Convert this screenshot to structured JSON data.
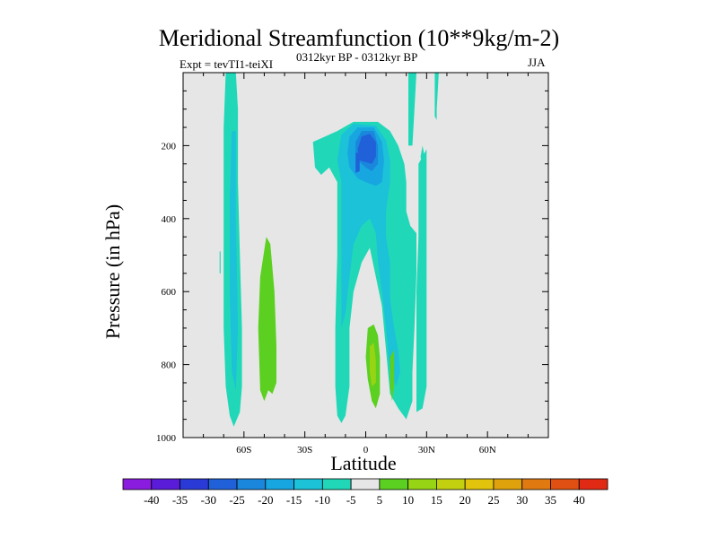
{
  "chart_data": {
    "type": "heatmap",
    "title": "Meridional Streamfunction (10**9kg/m-2)",
    "subtitle_left": "Expt = tevTI1-teiXI",
    "subtitle_center": "0312kyr BP - 0312kyr BP",
    "subtitle_right": "JJA",
    "xlabel": "Latitude",
    "ylabel": "Pressure (in hPa)",
    "x_range": [
      -90,
      90
    ],
    "y_range": [
      1000,
      0
    ],
    "y_ticks": [
      {
        "value": 200,
        "label": "200"
      },
      {
        "value": 400,
        "label": "400"
      },
      {
        "value": 600,
        "label": "600"
      },
      {
        "value": 800,
        "label": "800"
      },
      {
        "value": 1000,
        "label": "1000"
      }
    ],
    "x_ticks": [
      {
        "value": -60,
        "label": "60S"
      },
      {
        "value": -30,
        "label": "30S"
      },
      {
        "value": 0,
        "label": "0"
      },
      {
        "value": 30,
        "label": "30N"
      },
      {
        "value": 60,
        "label": "60N"
      }
    ],
    "colorbar": {
      "labels": [
        "-40",
        "-35",
        "-30",
        "-25",
        "-20",
        "-15",
        "-10",
        "-5",
        "5",
        "10",
        "15",
        "20",
        "25",
        "30",
        "35",
        "40"
      ],
      "colors": [
        "#8a1ce0",
        "#5a1cd8",
        "#2a3ad6",
        "#2060d8",
        "#1a86dc",
        "#18a6e0",
        "#1cc2d8",
        "#20d8b8",
        "#e6e6e6",
        "#5cd020",
        "#96d414",
        "#c2d010",
        "#e2c40c",
        "#e0a20c",
        "#e07a10",
        "#e05012",
        "#e02a14"
      ],
      "bins": [
        "<-40",
        "-40 to -35",
        "-35 to -30",
        "-30 to -25",
        "-25 to -20",
        "-20 to -15",
        "-15 to -10",
        "-10 to -5",
        "-5 to 5",
        "5 to 10",
        "10 to 15",
        "15 to 20",
        "20 to 25",
        "25 to 30",
        "30 to 35",
        "35 to 40",
        ">40"
      ]
    },
    "background_color": "#e6e6e6",
    "contour_regions": [
      {
        "name": "sh-polar-cell",
        "level": -5,
        "color": "#20d8b8",
        "outline": [
          [
            -69,
            0
          ],
          [
            -64,
            0
          ],
          [
            -63,
            100
          ],
          [
            -63,
            300
          ],
          [
            -62,
            500
          ],
          [
            -61,
            700
          ],
          [
            -61,
            860
          ],
          [
            -62,
            930
          ],
          [
            -65,
            970
          ],
          [
            -67,
            940
          ],
          [
            -69,
            860
          ],
          [
            -70,
            700
          ],
          [
            -70,
            500
          ],
          [
            -70,
            300
          ],
          [
            -70,
            150
          ]
        ]
      },
      {
        "name": "sh-polar-core",
        "level": -10,
        "color": "#1cc2d8",
        "outline": [
          [
            -66,
            160
          ],
          [
            -64,
            160
          ],
          [
            -64,
            400
          ],
          [
            -63,
            700
          ],
          [
            -64,
            870
          ],
          [
            -66,
            820
          ],
          [
            -67,
            600
          ],
          [
            -67,
            350
          ]
        ]
      },
      {
        "name": "sh-midlat-positive",
        "level": 5,
        "color": "#5cd020",
        "outline": [
          [
            -49,
            450
          ],
          [
            -47,
            470
          ],
          [
            -45,
            600
          ],
          [
            -44,
            750
          ],
          [
            -44,
            850
          ],
          [
            -46,
            880
          ],
          [
            -48,
            870
          ],
          [
            -50,
            900
          ],
          [
            -52,
            870
          ],
          [
            -53,
            700
          ],
          [
            -52,
            560
          ]
        ]
      },
      {
        "name": "small-cell",
        "level": -5,
        "color": "#20d8b8",
        "outline": [
          [
            -72,
            490
          ],
          [
            -71.5,
            490
          ],
          [
            -71.5,
            550
          ],
          [
            -72,
            550
          ]
        ]
      },
      {
        "name": "hadley-cell-outer",
        "level": -5,
        "color": "#20d8b8",
        "outline": [
          [
            -26,
            190
          ],
          [
            -22,
            180
          ],
          [
            -14,
            160
          ],
          [
            -6,
            135
          ],
          [
            6,
            135
          ],
          [
            12,
            160
          ],
          [
            16,
            200
          ],
          [
            19,
            250
          ],
          [
            20,
            300
          ],
          [
            20,
            380
          ],
          [
            22,
            420
          ],
          [
            25,
            440
          ],
          [
            25,
            550
          ],
          [
            24,
            700
          ],
          [
            23,
            820
          ],
          [
            23,
            900
          ],
          [
            20,
            950
          ],
          [
            16,
            920
          ],
          [
            12,
            880
          ],
          [
            10,
            760
          ],
          [
            8,
            640
          ],
          [
            5,
            560
          ],
          [
            2,
            480
          ],
          [
            -2,
            520
          ],
          [
            -6,
            600
          ],
          [
            -8,
            700
          ],
          [
            -8,
            860
          ],
          [
            -10,
            940
          ],
          [
            -12,
            960
          ],
          [
            -14,
            940
          ],
          [
            -15,
            860
          ],
          [
            -15,
            700
          ],
          [
            -14,
            500
          ],
          [
            -14,
            300
          ],
          [
            -18,
            260
          ],
          [
            -22,
            280
          ],
          [
            -25,
            260
          ]
        ]
      },
      {
        "name": "hadley-cell-10",
        "level": -10,
        "color": "#1cc2d8",
        "outline": [
          [
            -12,
            170
          ],
          [
            -6,
            140
          ],
          [
            5,
            145
          ],
          [
            10,
            185
          ],
          [
            12,
            240
          ],
          [
            12,
            300
          ],
          [
            10,
            380
          ],
          [
            10,
            450
          ],
          [
            12,
            520
          ],
          [
            12,
            620
          ],
          [
            14,
            700
          ],
          [
            16,
            760
          ],
          [
            17,
            820
          ],
          [
            15,
            860
          ],
          [
            12,
            820
          ],
          [
            10,
            700
          ],
          [
            8,
            600
          ],
          [
            6,
            520
          ],
          [
            5,
            440
          ],
          [
            2,
            400
          ],
          [
            -2,
            420
          ],
          [
            -6,
            470
          ],
          [
            -8,
            560
          ],
          [
            -10,
            660
          ],
          [
            -12,
            700
          ],
          [
            -12,
            560
          ],
          [
            -12,
            420
          ],
          [
            -12,
            300
          ],
          [
            -14,
            240
          ]
        ]
      },
      {
        "name": "hadley-cell-15",
        "level": -15,
        "color": "#18a6e0",
        "outline": [
          [
            -8,
            175
          ],
          [
            -4,
            150
          ],
          [
            4,
            150
          ],
          [
            8,
            190
          ],
          [
            9,
            240
          ],
          [
            8,
            300
          ],
          [
            5,
            310
          ],
          [
            0,
            300
          ],
          [
            -4,
            290
          ],
          [
            -8,
            260
          ],
          [
            -9,
            220
          ]
        ]
      },
      {
        "name": "hadley-cell-20",
        "level": -20,
        "color": "#1a86dc",
        "outline": [
          [
            -5,
            190
          ],
          [
            -2,
            160
          ],
          [
            4,
            160
          ],
          [
            6,
            200
          ],
          [
            6,
            250
          ],
          [
            3,
            270
          ],
          [
            0,
            260
          ],
          [
            -4,
            240
          ],
          [
            -5,
            220
          ]
        ]
      },
      {
        "name": "hadley-cell-25",
        "level": -25,
        "color": "#2060d8",
        "outline": [
          [
            -2,
            175
          ],
          [
            2,
            168
          ],
          [
            5,
            190
          ],
          [
            5,
            230
          ],
          [
            3,
            250
          ],
          [
            0,
            245
          ],
          [
            -3,
            240
          ],
          [
            -4,
            210
          ]
        ]
      },
      {
        "name": "hadley-core-filament-left",
        "level": -25,
        "color": "#2060d8",
        "outline": [
          [
            -5,
            220
          ],
          [
            -3,
            220
          ],
          [
            -3,
            270
          ],
          [
            -5,
            275
          ]
        ]
      },
      {
        "name": "nh-tropical-positive-5",
        "level": 5,
        "color": "#5cd020",
        "outline": [
          [
            1,
            700
          ],
          [
            4,
            690
          ],
          [
            6,
            720
          ],
          [
            7,
            780
          ],
          [
            7,
            880
          ],
          [
            5,
            920
          ],
          [
            3,
            900
          ],
          [
            1,
            840
          ],
          [
            0,
            780
          ]
        ]
      },
      {
        "name": "nh-tropical-positive-10",
        "level": 10,
        "color": "#96d414",
        "outline": [
          [
            2,
            750
          ],
          [
            4,
            740
          ],
          [
            5,
            790
          ],
          [
            5,
            850
          ],
          [
            3,
            860
          ],
          [
            2,
            820
          ]
        ]
      },
      {
        "name": "nh-midlat-positive",
        "level": 5,
        "color": "#5cd020",
        "outline": [
          [
            12,
            780
          ],
          [
            14,
            760
          ],
          [
            14,
            860
          ],
          [
            13,
            900
          ],
          [
            12,
            860
          ]
        ]
      },
      {
        "name": "nh-upper-filament-1",
        "level": -5,
        "color": "#20d8b8",
        "outline": [
          [
            21,
            0
          ],
          [
            25,
            0
          ],
          [
            24,
            100
          ],
          [
            23,
            200
          ],
          [
            21,
            200
          ],
          [
            21,
            100
          ]
        ]
      },
      {
        "name": "nh-upper-filament-2",
        "level": -5,
        "color": "#20d8b8",
        "outline": [
          [
            34,
            0
          ],
          [
            36,
            0
          ],
          [
            35,
            100
          ],
          [
            35,
            130
          ],
          [
            34,
            120
          ]
        ]
      },
      {
        "name": "nh-lower-cell",
        "level": -5,
        "color": "#20d8b8",
        "outline": [
          [
            26,
            250
          ],
          [
            30,
            210
          ],
          [
            30,
            380
          ],
          [
            30,
            520
          ],
          [
            30,
            700
          ],
          [
            30,
            860
          ],
          [
            28,
            920
          ],
          [
            25,
            930
          ],
          [
            25,
            800
          ],
          [
            25,
            600
          ],
          [
            26,
            450
          ]
        ]
      },
      {
        "name": "nh-small-upper",
        "level": -5,
        "color": "#20d8b8",
        "outline": [
          [
            27,
            230
          ],
          [
            28,
            200
          ],
          [
            29,
            230
          ],
          [
            28,
            260
          ]
        ]
      }
    ]
  }
}
